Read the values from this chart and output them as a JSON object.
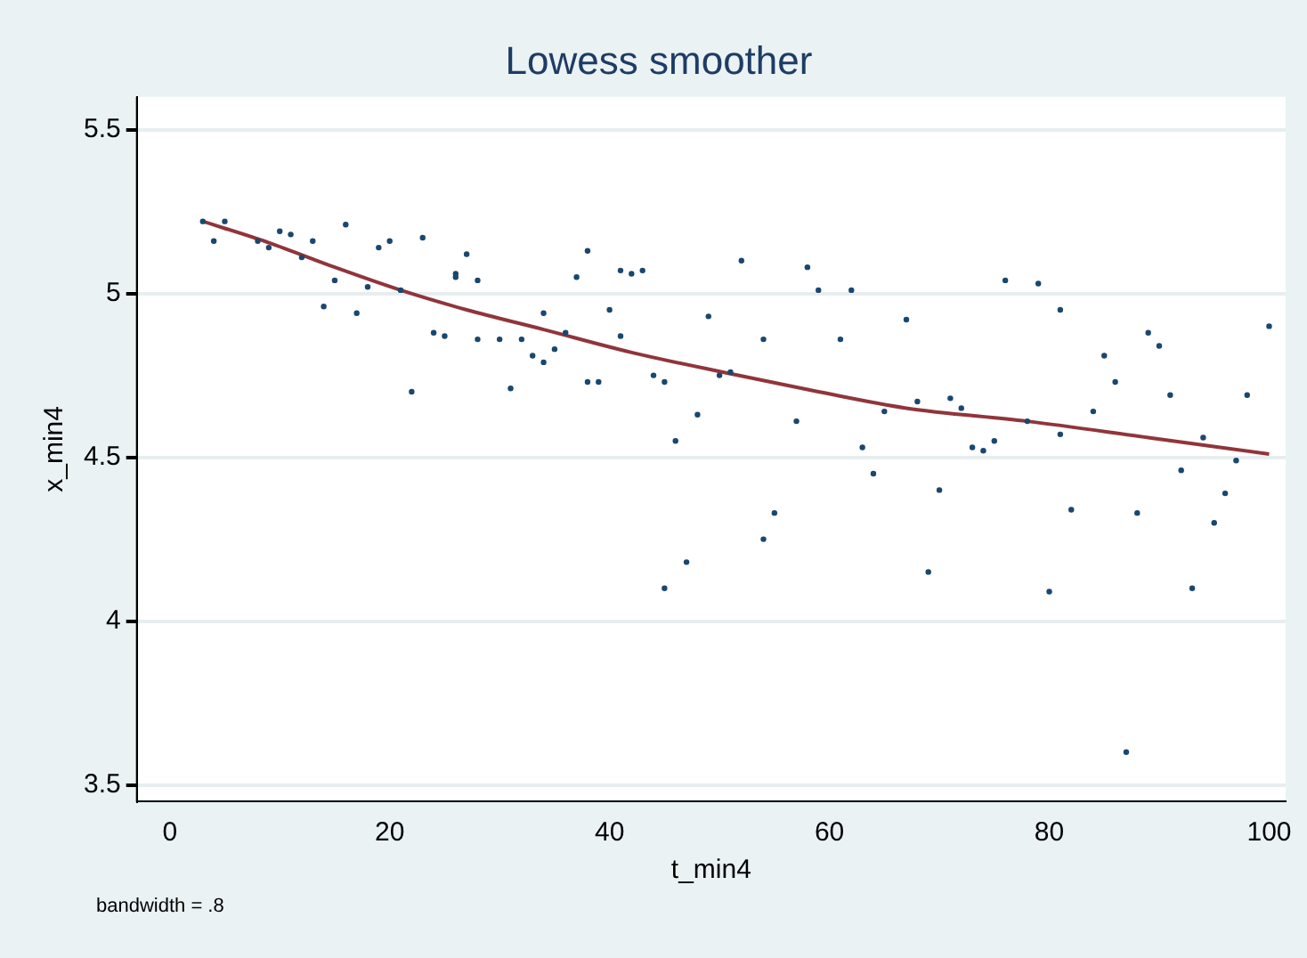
{
  "chart_data": {
    "type": "scatter",
    "title": "Lowess smoother",
    "xlabel": "t_min4",
    "ylabel": "x_min4",
    "annotations": [
      "bandwidth = .8"
    ],
    "xlim": [
      -3,
      101.5
    ],
    "ylim": [
      3.45,
      5.6
    ],
    "xticks": [
      0,
      20,
      40,
      60,
      80,
      100
    ],
    "yticks": [
      3.5,
      4,
      4.5,
      5,
      5.5
    ],
    "grid": "y",
    "legend": false,
    "series": [
      {
        "marker": "circle",
        "color": "#1a476f",
        "x": [
          3,
          4,
          5,
          8,
          9,
          10,
          11,
          12,
          13,
          14,
          15,
          16,
          17,
          18,
          19,
          20,
          21,
          22,
          23,
          24,
          25,
          26,
          26,
          27,
          28,
          28,
          30,
          31,
          32,
          33,
          34,
          34,
          35,
          36,
          37,
          38,
          38,
          39,
          40,
          41,
          41,
          42,
          43,
          44,
          45,
          45,
          46,
          47,
          48,
          49,
          50,
          51,
          52,
          54,
          54,
          55,
          57,
          58,
          59,
          61,
          62,
          63,
          64,
          65,
          67,
          68,
          69,
          70,
          71,
          72,
          73,
          74,
          75,
          76,
          78,
          79,
          80,
          81,
          81,
          82,
          84,
          85,
          86,
          87,
          88,
          89,
          90,
          91,
          92,
          93,
          94,
          95,
          96,
          97,
          98,
          100
        ],
        "values": [
          5.22,
          5.16,
          5.22,
          5.16,
          5.14,
          5.19,
          5.18,
          5.11,
          5.16,
          4.96,
          5.04,
          5.21,
          4.94,
          5.02,
          5.14,
          5.16,
          5.01,
          4.7,
          5.17,
          4.88,
          4.87,
          5.06,
          5.05,
          5.12,
          5.04,
          4.86,
          4.86,
          4.71,
          4.86,
          4.81,
          4.79,
          4.94,
          4.83,
          4.88,
          5.05,
          5.13,
          4.73,
          4.73,
          4.95,
          5.07,
          4.87,
          5.06,
          5.07,
          4.75,
          4.73,
          4.1,
          4.55,
          4.18,
          4.63,
          4.93,
          4.75,
          4.76,
          5.1,
          4.86,
          4.25,
          4.33,
          4.61,
          5.08,
          5.01,
          4.86,
          5.01,
          4.53,
          4.45,
          4.64,
          4.92,
          4.67,
          4.15,
          4.4,
          4.68,
          4.65,
          4.53,
          4.52,
          4.55,
          5.04,
          4.61,
          5.03,
          4.09,
          4.95,
          4.57,
          4.34,
          4.64,
          4.81,
          4.73,
          3.6,
          4.33,
          4.88,
          4.84,
          4.69,
          4.46,
          4.1,
          4.56,
          4.3,
          4.39,
          4.49,
          4.69,
          4.9
        ]
      },
      {
        "type": "line",
        "marker": "none",
        "color": "#90353b",
        "x": [
          3,
          9,
          15,
          21,
          27,
          34,
          42,
          51,
          59,
          67,
          78,
          89,
          100
        ],
        "values": [
          5.22,
          5.155,
          5.08,
          5.01,
          4.95,
          4.89,
          4.82,
          4.755,
          4.7,
          4.65,
          4.61,
          4.56,
          4.51
        ]
      }
    ]
  }
}
